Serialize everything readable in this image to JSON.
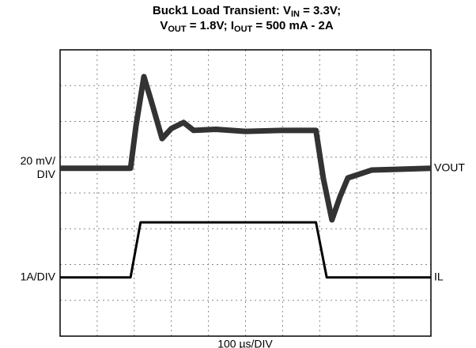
{
  "chart_data": {
    "type": "line",
    "title": [
      [
        "Buck1 Load Transient: V",
        "IN",
        " = 3.3V;"
      ],
      [
        "V",
        "OUT",
        " = 1.8V; I",
        "OUT",
        " = 500 mA - 2A"
      ]
    ],
    "xlabel": "100 µs/DIV",
    "xlim": [
      0,
      10
    ],
    "ylim": [
      0,
      8
    ],
    "grid": true,
    "series": [
      {
        "name": "VOUT",
        "color": "#333333",
        "scale": [
          "20 mV/",
          "DIV"
        ],
        "x": [
          0,
          1.9,
          2.05,
          2.26,
          2.45,
          2.75,
          3.0,
          3.33,
          3.6,
          4.2,
          5.0,
          6.0,
          6.9,
          7.1,
          7.33,
          7.55,
          7.76,
          8.4,
          10
        ],
        "values": [
          4.69,
          4.69,
          5.9,
          7.25,
          6.6,
          5.52,
          5.8,
          5.97,
          5.75,
          5.78,
          5.72,
          5.75,
          5.75,
          4.4,
          3.25,
          3.9,
          4.42,
          4.64,
          4.69
        ]
      },
      {
        "name": "IL",
        "color": "#000000",
        "scale": [
          "1A/DIV"
        ],
        "x": [
          0,
          1.9,
          2.17,
          6.9,
          7.19,
          10
        ],
        "values": [
          1.64,
          1.64,
          3.18,
          3.18,
          1.64,
          1.64
        ]
      }
    ]
  }
}
